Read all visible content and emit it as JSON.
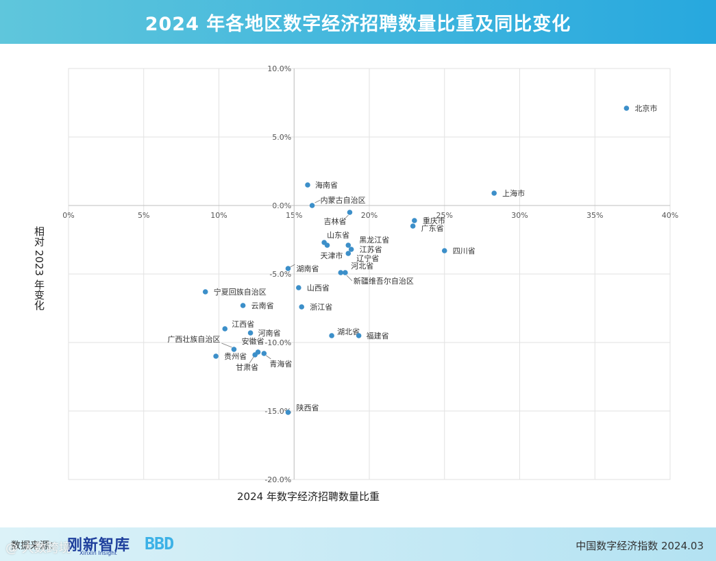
{
  "header": {
    "title": "2024 年各地区数字经济招聘数量比重及同比变化"
  },
  "chart_data": {
    "type": "scatter",
    "title": "2024 年各地区数字经济招聘数量比重及同比变化",
    "xlabel": "2024 年数字经济招聘数量比重",
    "ylabel": "相对 2023 年变化",
    "xlim": [
      0,
      40
    ],
    "ylim": [
      -20,
      10
    ],
    "x_ticks": [
      "0%",
      "5%",
      "10%",
      "15%",
      "20%",
      "25%",
      "30%",
      "35%",
      "40%"
    ],
    "y_ticks": [
      "10.0%",
      "5.0%",
      "0.0%",
      "-5.0%",
      "-10.0%",
      "-15.0%",
      "-20.0%"
    ],
    "grid": true,
    "point_color": "#3c8fc9",
    "points": [
      {
        "name": "北京市",
        "x": 37.1,
        "y": 7.1
      },
      {
        "name": "上海市",
        "x": 28.3,
        "y": 0.9
      },
      {
        "name": "海南省",
        "x": 15.9,
        "y": 1.5
      },
      {
        "name": "内蒙古自治区",
        "x": 16.2,
        "y": 0.0
      },
      {
        "name": "吉林省",
        "x": 18.7,
        "y": -0.5
      },
      {
        "name": "重庆市",
        "x": 23.0,
        "y": -1.1
      },
      {
        "name": "广东省",
        "x": 22.9,
        "y": -1.5
      },
      {
        "name": "山东省",
        "x": 17.0,
        "y": -2.7
      },
      {
        "name": "天津市",
        "x": 17.2,
        "y": -2.9
      },
      {
        "name": "黑龙江省",
        "x": 18.6,
        "y": -2.9
      },
      {
        "name": "江苏省",
        "x": 18.8,
        "y": -3.2
      },
      {
        "name": "辽宁省",
        "x": 18.6,
        "y": -3.5
      },
      {
        "name": "四川省",
        "x": 25.0,
        "y": -3.3
      },
      {
        "name": "湖南省",
        "x": 14.6,
        "y": -4.6
      },
      {
        "name": "河北省",
        "x": 18.1,
        "y": -4.9
      },
      {
        "name": "新疆维吾尔自治区",
        "x": 18.4,
        "y": -4.9
      },
      {
        "name": "山西省",
        "x": 15.3,
        "y": -6.0
      },
      {
        "name": "宁夏回族自治区",
        "x": 9.1,
        "y": -6.3
      },
      {
        "name": "云南省",
        "x": 11.6,
        "y": -7.3
      },
      {
        "name": "浙江省",
        "x": 15.5,
        "y": -7.4
      },
      {
        "name": "江西省",
        "x": 10.4,
        "y": -9.0
      },
      {
        "name": "河南省",
        "x": 12.1,
        "y": -9.3
      },
      {
        "name": "湖北省",
        "x": 17.5,
        "y": -9.5
      },
      {
        "name": "福建省",
        "x": 19.3,
        "y": -9.5
      },
      {
        "name": "广西壮族自治区",
        "x": 11.0,
        "y": -10.5
      },
      {
        "name": "安徽省",
        "x": 12.6,
        "y": -10.7
      },
      {
        "name": "贵州省",
        "x": 9.8,
        "y": -11.0
      },
      {
        "name": "甘肃省",
        "x": 12.4,
        "y": -10.9
      },
      {
        "name": "青海省",
        "x": 13.0,
        "y": -10.8
      },
      {
        "name": "陕西省",
        "x": 14.6,
        "y": -15.1
      }
    ]
  },
  "footer": {
    "source_label": "数据来源：",
    "logo1": "刚新智库",
    "logo1_sub": "Xinxin Insight",
    "logo2": "BBD",
    "index_label": "中国数字经济指数 2024.03"
  },
  "watermark": "@ 大数跨境"
}
